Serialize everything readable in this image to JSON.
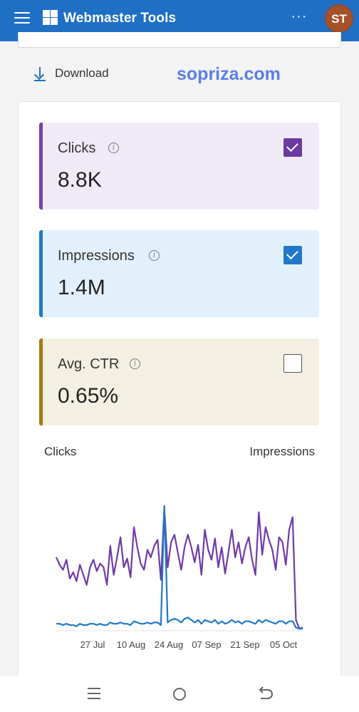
{
  "header": {
    "title": "Webmaster Tools",
    "more_label": "···",
    "avatar_initials": "ST",
    "brand_color": "#1f6fc5"
  },
  "toolbar": {
    "download_label": "Download"
  },
  "watermark": "sopriza.com",
  "metrics": [
    {
      "label": "Clicks",
      "value": "8.8K",
      "checked": true,
      "color": "#7a3fab"
    },
    {
      "label": "Impressions",
      "value": "1.4M",
      "checked": true,
      "color": "#1f78c8"
    },
    {
      "label": "Avg. CTR",
      "value": "0.65%",
      "checked": false,
      "color": "#a6790c"
    }
  ],
  "chart": {
    "left_axis_label": "Clicks",
    "right_axis_label": "Impressions"
  },
  "chart_data": {
    "type": "line",
    "x_ticks": [
      "27 Jul",
      "10 Aug",
      "24 Aug",
      "07 Sep",
      "21 Sep",
      "05 Oct"
    ],
    "series": [
      {
        "name": "Clicks",
        "color": "#6f3aa8",
        "values": [
          0.58,
          0.52,
          0.48,
          0.56,
          0.41,
          0.46,
          0.39,
          0.52,
          0.44,
          0.36,
          0.5,
          0.56,
          0.47,
          0.53,
          0.5,
          0.36,
          0.67,
          0.44,
          0.58,
          0.74,
          0.5,
          0.57,
          0.42,
          0.82,
          0.66,
          0.53,
          0.48,
          0.64,
          0.58,
          0.67,
          0.72,
          0.4,
          0.98,
          0.5,
          0.7,
          0.76,
          0.62,
          0.48,
          0.66,
          0.76,
          0.66,
          0.54,
          0.68,
          0.44,
          0.8,
          0.64,
          0.56,
          0.73,
          0.5,
          0.66,
          0.45,
          0.62,
          0.8,
          0.58,
          0.7,
          0.53,
          0.66,
          0.74,
          0.56,
          0.44,
          0.94,
          0.6,
          0.82,
          0.72,
          0.64,
          0.48,
          0.74,
          0.7,
          0.52,
          0.8,
          0.9,
          0.08,
          0.01,
          0.02
        ]
      },
      {
        "name": "Impressions",
        "color": "#1f78c8",
        "values": [
          0.05,
          0.05,
          0.04,
          0.05,
          0.04,
          0.04,
          0.03,
          0.05,
          0.04,
          0.04,
          0.05,
          0.05,
          0.04,
          0.05,
          0.04,
          0.04,
          0.06,
          0.05,
          0.05,
          0.06,
          0.05,
          0.05,
          0.04,
          0.07,
          0.06,
          0.05,
          0.05,
          0.06,
          0.05,
          0.06,
          0.06,
          0.04,
          0.99,
          0.06,
          0.08,
          0.09,
          0.08,
          0.06,
          0.09,
          0.1,
          0.08,
          0.06,
          0.08,
          0.05,
          0.08,
          0.07,
          0.06,
          0.08,
          0.05,
          0.07,
          0.05,
          0.06,
          0.08,
          0.06,
          0.07,
          0.05,
          0.07,
          0.07,
          0.06,
          0.05,
          0.08,
          0.06,
          0.08,
          0.07,
          0.06,
          0.05,
          0.07,
          0.07,
          0.05,
          0.07,
          0.07,
          0.02,
          0.01,
          0.01
        ]
      }
    ],
    "ylim": [
      0,
      1
    ],
    "grid": false,
    "legend": "none"
  },
  "system_nav": {
    "back_icon": "back-icon",
    "home_icon": "home-icon",
    "menu_icon": "recents-icon"
  }
}
